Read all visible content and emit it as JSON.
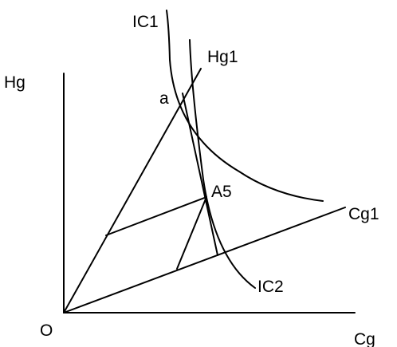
{
  "labels": {
    "y_axis": "Hg",
    "x_axis": "Cg",
    "origin": "O",
    "ray_hg": "Hg1",
    "ray_cg": "Cg1",
    "curve_1": "IC1",
    "curve_2": "IC2",
    "point_a": "a",
    "point_a5": "A5"
  },
  "colors": {
    "line": "#000000",
    "background": "#ffffff"
  }
}
